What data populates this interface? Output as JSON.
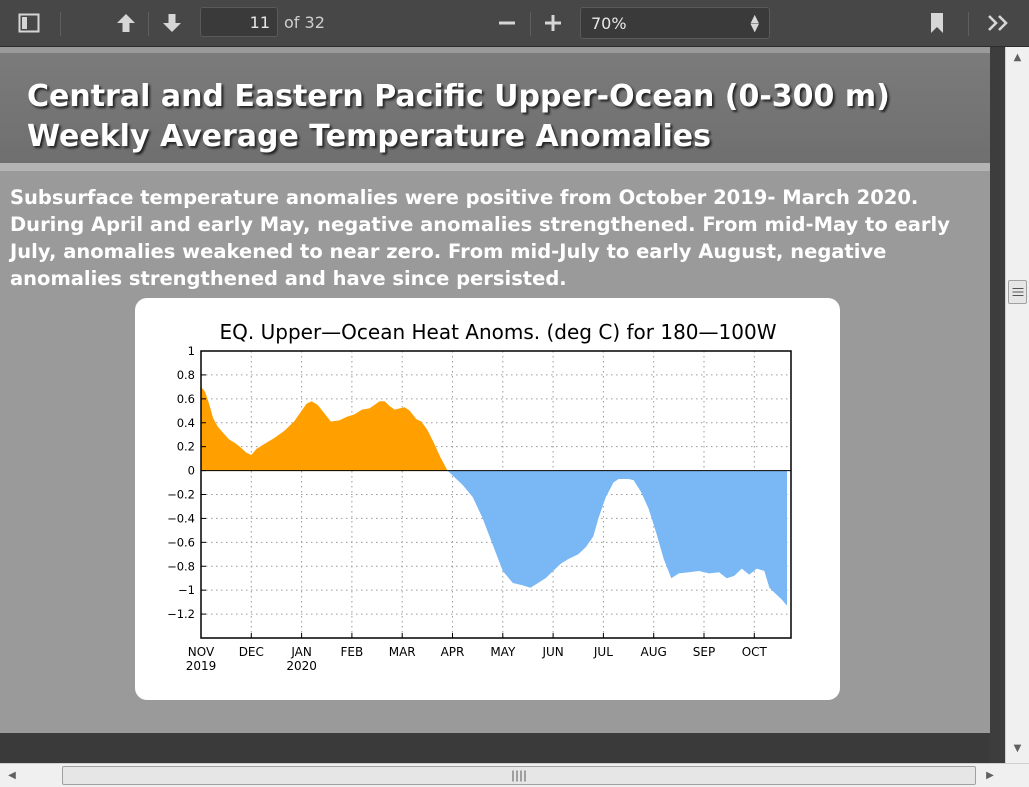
{
  "toolbar": {
    "page_number": "11",
    "page_total": "of 32",
    "zoom": "70%",
    "icons": [
      "sidebar-toggle-icon",
      "arrow-up-icon",
      "arrow-down-icon",
      "zoom-out-icon",
      "zoom-in-icon",
      "bookmark-icon",
      "double-chevron-right-icon"
    ]
  },
  "slide": {
    "title_line1": "Central and Eastern Pacific Upper-Ocean (0-300 m)",
    "title_line2": "Weekly Average Temperature Anomalies",
    "body": "Subsurface temperature anomalies were positive from October 2019- March 2020. During April and early May, negative anomalies strengthened. From mid-May to early July, anomalies weakened to near zero.  From mid-July to early August, negative anomalies strengthened and have since persisted."
  },
  "chart_data": {
    "type": "area",
    "title": "EQ. Upper—Ocean Heat Anoms. (deg C) for 180—100W",
    "xlabel": "",
    "ylabel": "",
    "ylim": [
      -1.4,
      1
    ],
    "yticks": [
      "1",
      "0.8",
      "0.6",
      "0.4",
      "0.2",
      "0",
      "−0.2",
      "−0.4",
      "−0.6",
      "−0.8",
      "−1",
      "−1.2"
    ],
    "ytick_values": [
      1,
      0.8,
      0.6,
      0.4,
      0.2,
      0,
      -0.2,
      -0.4,
      -0.6,
      -0.8,
      -1,
      -1.2
    ],
    "xticks": [
      {
        "label": "NOV",
        "sub": "2019",
        "month": 0
      },
      {
        "label": "DEC",
        "sub": "",
        "month": 1
      },
      {
        "label": "JAN",
        "sub": "2020",
        "month": 2
      },
      {
        "label": "FEB",
        "sub": "",
        "month": 3
      },
      {
        "label": "MAR",
        "sub": "",
        "month": 4
      },
      {
        "label": "APR",
        "sub": "",
        "month": 5
      },
      {
        "label": "MAY",
        "sub": "",
        "month": 6
      },
      {
        "label": "JUN",
        "sub": "",
        "month": 7
      },
      {
        "label": "JUL",
        "sub": "",
        "month": 8
      },
      {
        "label": "AUG",
        "sub": "",
        "month": 9
      },
      {
        "label": "SEP",
        "sub": "",
        "month": 10
      },
      {
        "label": "OCT",
        "sub": "",
        "month": 11
      }
    ],
    "xlim_months": [
      0,
      11.65
    ],
    "grid": true,
    "positive_color": "#ff9f00",
    "negative_color": "#79b7f5",
    "series": [
      {
        "values": [
          [
            0.0,
            0.7
          ],
          [
            0.08,
            0.66
          ],
          [
            0.16,
            0.56
          ],
          [
            0.24,
            0.44
          ],
          [
            0.33,
            0.37
          ],
          [
            0.45,
            0.31
          ],
          [
            0.56,
            0.26
          ],
          [
            0.68,
            0.23
          ],
          [
            0.8,
            0.19
          ],
          [
            0.9,
            0.15
          ],
          [
            1.0,
            0.13
          ],
          [
            1.1,
            0.18
          ],
          [
            1.25,
            0.22
          ],
          [
            1.45,
            0.27
          ],
          [
            1.65,
            0.33
          ],
          [
            1.85,
            0.41
          ],
          [
            2.0,
            0.5
          ],
          [
            2.1,
            0.56
          ],
          [
            2.2,
            0.58
          ],
          [
            2.32,
            0.55
          ],
          [
            2.45,
            0.48
          ],
          [
            2.58,
            0.41
          ],
          [
            2.75,
            0.42
          ],
          [
            2.9,
            0.45
          ],
          [
            3.05,
            0.47
          ],
          [
            3.2,
            0.51
          ],
          [
            3.35,
            0.52
          ],
          [
            3.45,
            0.55
          ],
          [
            3.55,
            0.58
          ],
          [
            3.65,
            0.58
          ],
          [
            3.75,
            0.54
          ],
          [
            3.85,
            0.51
          ],
          [
            3.95,
            0.52
          ],
          [
            4.05,
            0.53
          ],
          [
            4.15,
            0.5
          ],
          [
            4.28,
            0.43
          ],
          [
            4.38,
            0.41
          ],
          [
            4.5,
            0.34
          ],
          [
            4.62,
            0.24
          ],
          [
            4.75,
            0.12
          ],
          [
            4.9,
            0.0
          ],
          [
            5.05,
            -0.06
          ],
          [
            5.2,
            -0.12
          ],
          [
            5.4,
            -0.22
          ],
          [
            5.6,
            -0.4
          ],
          [
            5.8,
            -0.62
          ],
          [
            6.0,
            -0.84
          ],
          [
            6.2,
            -0.94
          ],
          [
            6.4,
            -0.96
          ],
          [
            6.55,
            -0.98
          ],
          [
            6.7,
            -0.94
          ],
          [
            6.85,
            -0.9
          ],
          [
            7.0,
            -0.84
          ],
          [
            7.15,
            -0.78
          ],
          [
            7.3,
            -0.74
          ],
          [
            7.5,
            -0.7
          ],
          [
            7.65,
            -0.64
          ],
          [
            7.8,
            -0.55
          ],
          [
            7.9,
            -0.4
          ],
          [
            8.05,
            -0.22
          ],
          [
            8.2,
            -0.1
          ],
          [
            8.3,
            -0.07
          ],
          [
            8.5,
            -0.07
          ],
          [
            8.6,
            -0.08
          ],
          [
            8.75,
            -0.18
          ],
          [
            8.9,
            -0.32
          ],
          [
            9.05,
            -0.52
          ],
          [
            9.2,
            -0.74
          ],
          [
            9.35,
            -0.9
          ],
          [
            9.5,
            -0.86
          ],
          [
            9.7,
            -0.85
          ],
          [
            9.9,
            -0.84
          ],
          [
            10.1,
            -0.86
          ],
          [
            10.3,
            -0.85
          ],
          [
            10.45,
            -0.9
          ],
          [
            10.6,
            -0.88
          ],
          [
            10.75,
            -0.82
          ],
          [
            10.9,
            -0.87
          ],
          [
            11.05,
            -0.82
          ],
          [
            11.2,
            -0.84
          ],
          [
            11.3,
            -0.98
          ],
          [
            11.45,
            -1.04
          ],
          [
            11.55,
            -1.08
          ],
          [
            11.65,
            -1.13
          ]
        ]
      }
    ]
  }
}
